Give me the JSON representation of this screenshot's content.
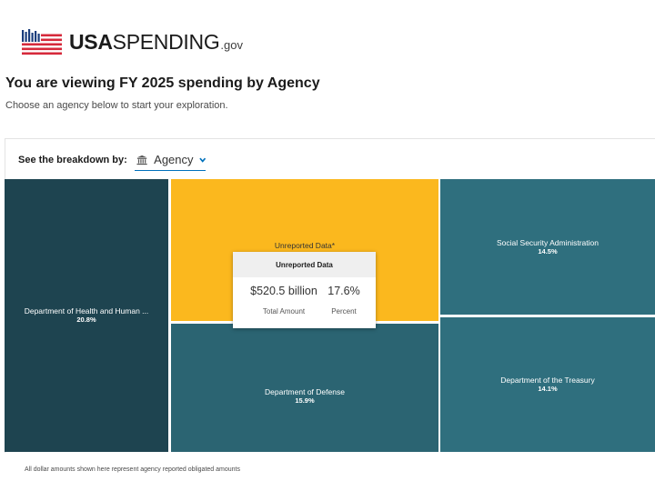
{
  "brand": {
    "name_bold": "USA",
    "name_rest": "SPENDING",
    "suffix": ".gov",
    "icon": "us-flag-logo-icon"
  },
  "page": {
    "title": "You are viewing FY 2025 spending by Agency",
    "subtitle": "Choose an agency below to start your exploration."
  },
  "breakdown": {
    "label": "See the breakdown by:",
    "selected": "Agency",
    "icon": "building-icon"
  },
  "treemap": {
    "tiles": [
      {
        "name": "Department of Health and Human ...",
        "percent": "20.8%",
        "color": "#1e4450"
      },
      {
        "name": "Unreported Data*",
        "percent": "",
        "color": "#fbb81e"
      },
      {
        "name": "Department of Defense",
        "percent": "15.9%",
        "color": "#2b6472"
      },
      {
        "name": "Social Security Administration",
        "percent": "14.5%",
        "color": "#2f6f7e"
      },
      {
        "name": "Department of the Treasury",
        "percent": "14.1%",
        "color": "#2f6f7e"
      }
    ]
  },
  "tooltip": {
    "title": "Unreported Data",
    "amount": "$520.5 billion",
    "amount_label": "Total Amount",
    "percent": "17.6%",
    "percent_label": "Percent"
  },
  "footnote": "All dollar amounts shown here represent agency reported obligated amounts",
  "colors": {
    "accent": "#0071bc",
    "highlight": "#fbb81e",
    "dark_teal": "#1e4450",
    "teal": "#2f6f7e"
  }
}
